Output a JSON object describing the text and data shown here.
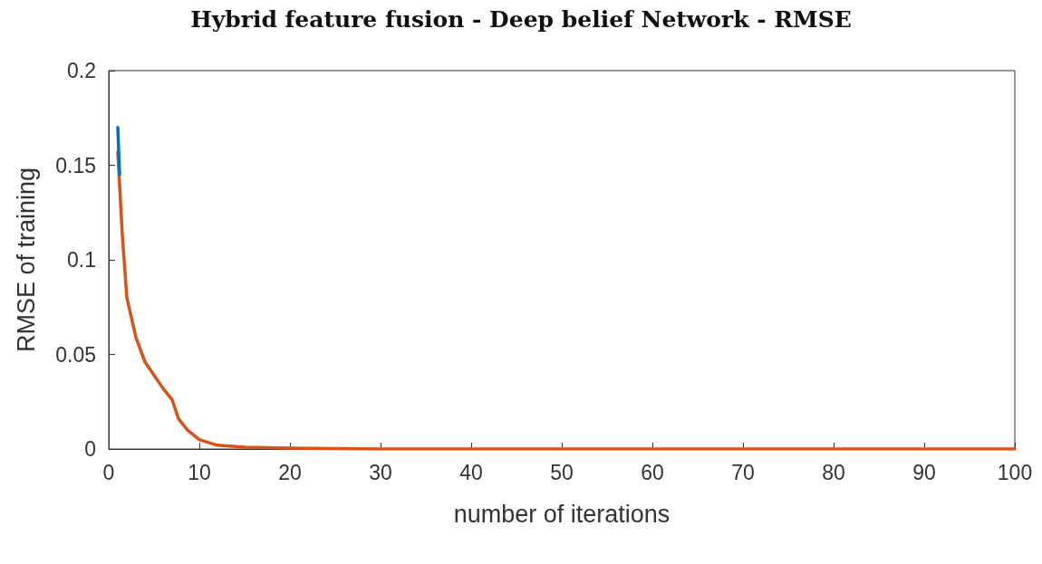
{
  "chart_data": {
    "type": "line",
    "title": "Hybrid feature fusion - Deep belief Network - RMSE",
    "xlabel": "number of iterations",
    "ylabel": "RMSE of training",
    "series": [
      {
        "color": "#0072bd",
        "x": [
          1,
          1.2
        ],
        "values": [
          0.17,
          0.145
        ]
      },
      {
        "color": "#d95319",
        "x": [
          1,
          1.5,
          2,
          3,
          4,
          5,
          6,
          7,
          7.7,
          8.7,
          10,
          12,
          15,
          20,
          30,
          50,
          100
        ],
        "values": [
          0.157,
          0.113,
          0.08,
          0.059,
          0.046,
          0.039,
          0.032,
          0.026,
          0.016,
          0.01,
          0.005,
          0.002,
          0.001,
          0.0005,
          0,
          0,
          0
        ]
      }
    ],
    "xlim": [
      0,
      100
    ],
    "xticks": [
      0,
      10,
      20,
      30,
      40,
      50,
      60,
      70,
      80,
      90,
      100
    ],
    "ylim": [
      0,
      0.2
    ],
    "yticks": [
      0,
      0.05,
      0.1,
      0.15,
      0.2
    ],
    "grid": false,
    "marker": "none",
    "line_style": "solid"
  }
}
